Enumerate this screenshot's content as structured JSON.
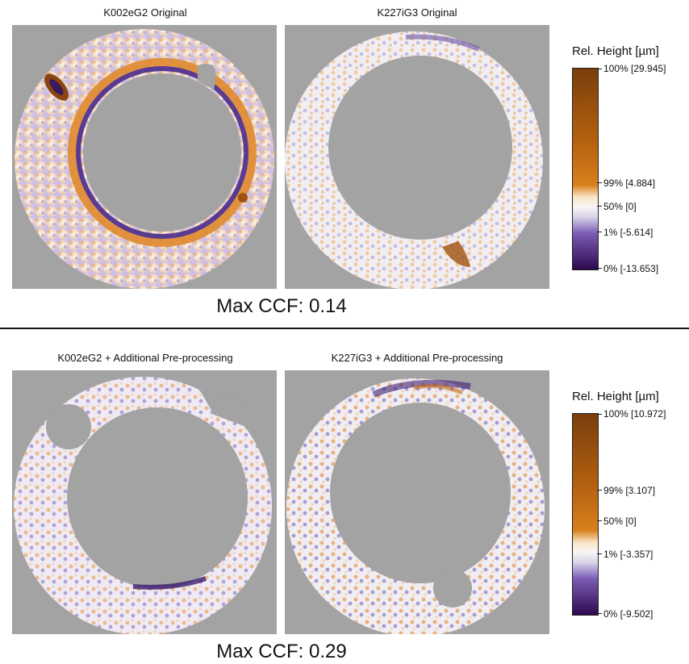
{
  "top": {
    "left_title": "K002eG2 Original",
    "right_title": "K227iG3 Original",
    "ccf": "Max CCF: 0.14",
    "legend": {
      "title": "Rel. Height [µm]",
      "labels": [
        "100% [29.945]",
        "99% [4.884]",
        "50% [0]",
        "1% [-5.614]",
        "0% [-13.653]"
      ]
    }
  },
  "bottom": {
    "left_title": "K002eG2 + Additional Pre-processing",
    "right_title": "K227iG3 + Additional Pre-processing",
    "ccf": "Max CCF: 0.29",
    "legend": {
      "title": "Rel. Height [µm]",
      "labels": [
        "100% [10.972]",
        "99% [3.107]",
        "50% [0]",
        "1% [-3.357]",
        "0% [-9.502]"
      ]
    }
  },
  "colors": {
    "background_gray": "#a3a3a3",
    "high_brown": "#7a3e0c",
    "mid_orange": "#e08a2c",
    "neutral_white": "#f7f5f5",
    "low_purple": "#6a4fa3",
    "deep_purple": "#2d0a4e"
  }
}
